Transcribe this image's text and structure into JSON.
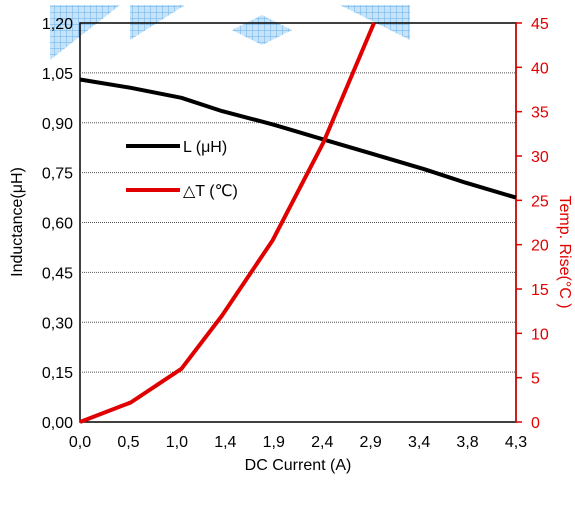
{
  "chart_data": {
    "type": "line",
    "xlabel": "DC Current (A)",
    "ylabel_left": "Inductance(μH)",
    "ylabel_right": "Temp. Rise(°C )",
    "x_ticks": [
      "0,0",
      "0,5",
      "1,0",
      "1,4",
      "1,9",
      "2,4",
      "2,9",
      "3,4",
      "3,8",
      "4,3"
    ],
    "y_left_ticks": [
      "0,00",
      "0,15",
      "0,30",
      "0,45",
      "0,60",
      "0,75",
      "0,90",
      "1,05",
      "1,20"
    ],
    "y_right_ticks": [
      "0",
      "5",
      "10",
      "15",
      "20",
      "25",
      "30",
      "35",
      "40",
      "45"
    ],
    "xlim": [
      0,
      4.3
    ],
    "ylim_left": [
      0,
      1.2
    ],
    "ylim_right": [
      0,
      45
    ],
    "grid": "horizontal dotted",
    "legend_position": "left-middle",
    "series": [
      {
        "name": "L (μH)",
        "axis": "left",
        "color": "#000000",
        "x": [
          0,
          0.5,
          1.0,
          1.4,
          1.9,
          2.4,
          2.9,
          3.4,
          3.8,
          4.3
        ],
        "y": [
          1.03,
          1.005,
          0.975,
          0.935,
          0.895,
          0.85,
          0.805,
          0.76,
          0.72,
          0.675
        ]
      },
      {
        "name": "△T (℃)",
        "axis": "right",
        "color": "#e00000",
        "x": [
          0,
          0.5,
          1.0,
          1.4,
          1.9,
          2.4,
          2.9
        ],
        "y": [
          0,
          2.2,
          6,
          12,
          20.5,
          31.5,
          45
        ]
      }
    ],
    "watermark_color": "#5aa9e6"
  }
}
